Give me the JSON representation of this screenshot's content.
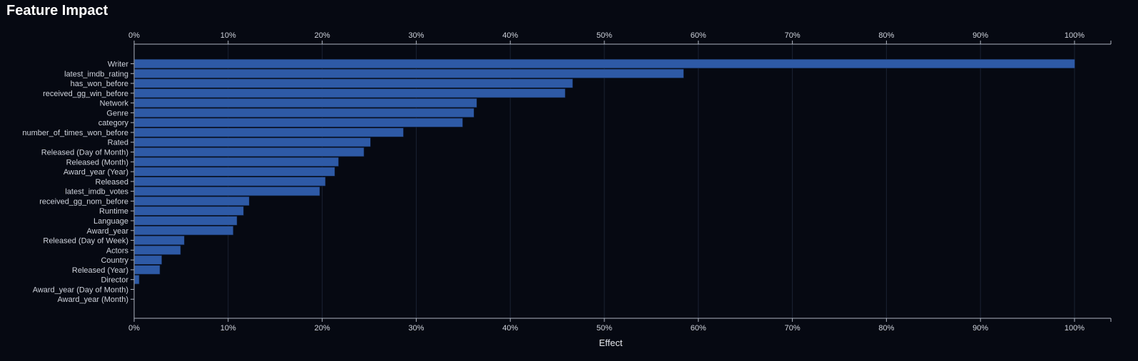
{
  "page": {
    "title": "Feature Impact"
  },
  "colors": {
    "background": "#060912",
    "bar": "#2e5aa6",
    "bar_stroke": "#10203f",
    "grid": "#1b2233",
    "axis": "#aeb4c0",
    "text": "#cfd3dc"
  },
  "chart_data": {
    "type": "bar",
    "orientation": "horizontal",
    "title": "Feature Impact",
    "xlabel": "Effect",
    "ylabel": "",
    "xlim": [
      0,
      100
    ],
    "x_ticks": [
      "0%",
      "10%",
      "20%",
      "30%",
      "40%",
      "50%",
      "60%",
      "70%",
      "80%",
      "90%",
      "100%"
    ],
    "x_axis_position": "top and bottom",
    "grid": true,
    "legend": "none",
    "categories": [
      "Writer",
      "latest_imdb_rating",
      "has_won_before",
      "received_gg_win_before",
      "Network",
      "Genre",
      "category",
      "number_of_times_won_before",
      "Rated",
      "Released (Day of Month)",
      "Released (Month)",
      "Award_year (Year)",
      "Released",
      "latest_imdb_votes",
      "received_gg_nom_before",
      "Runtime",
      "Language",
      "Award_year",
      "Released (Day of Week)",
      "Actors",
      "Country",
      "Released (Year)",
      "Director",
      "Award_year (Day of Month)",
      "Award_year (Month)"
    ],
    "values": [
      100,
      58.4,
      46.6,
      45.8,
      36.4,
      36.1,
      34.9,
      28.6,
      25.1,
      24.4,
      21.7,
      21.3,
      20.3,
      19.7,
      12.2,
      11.6,
      10.9,
      10.5,
      5.3,
      4.9,
      2.9,
      2.7,
      0.5,
      0,
      0
    ]
  }
}
